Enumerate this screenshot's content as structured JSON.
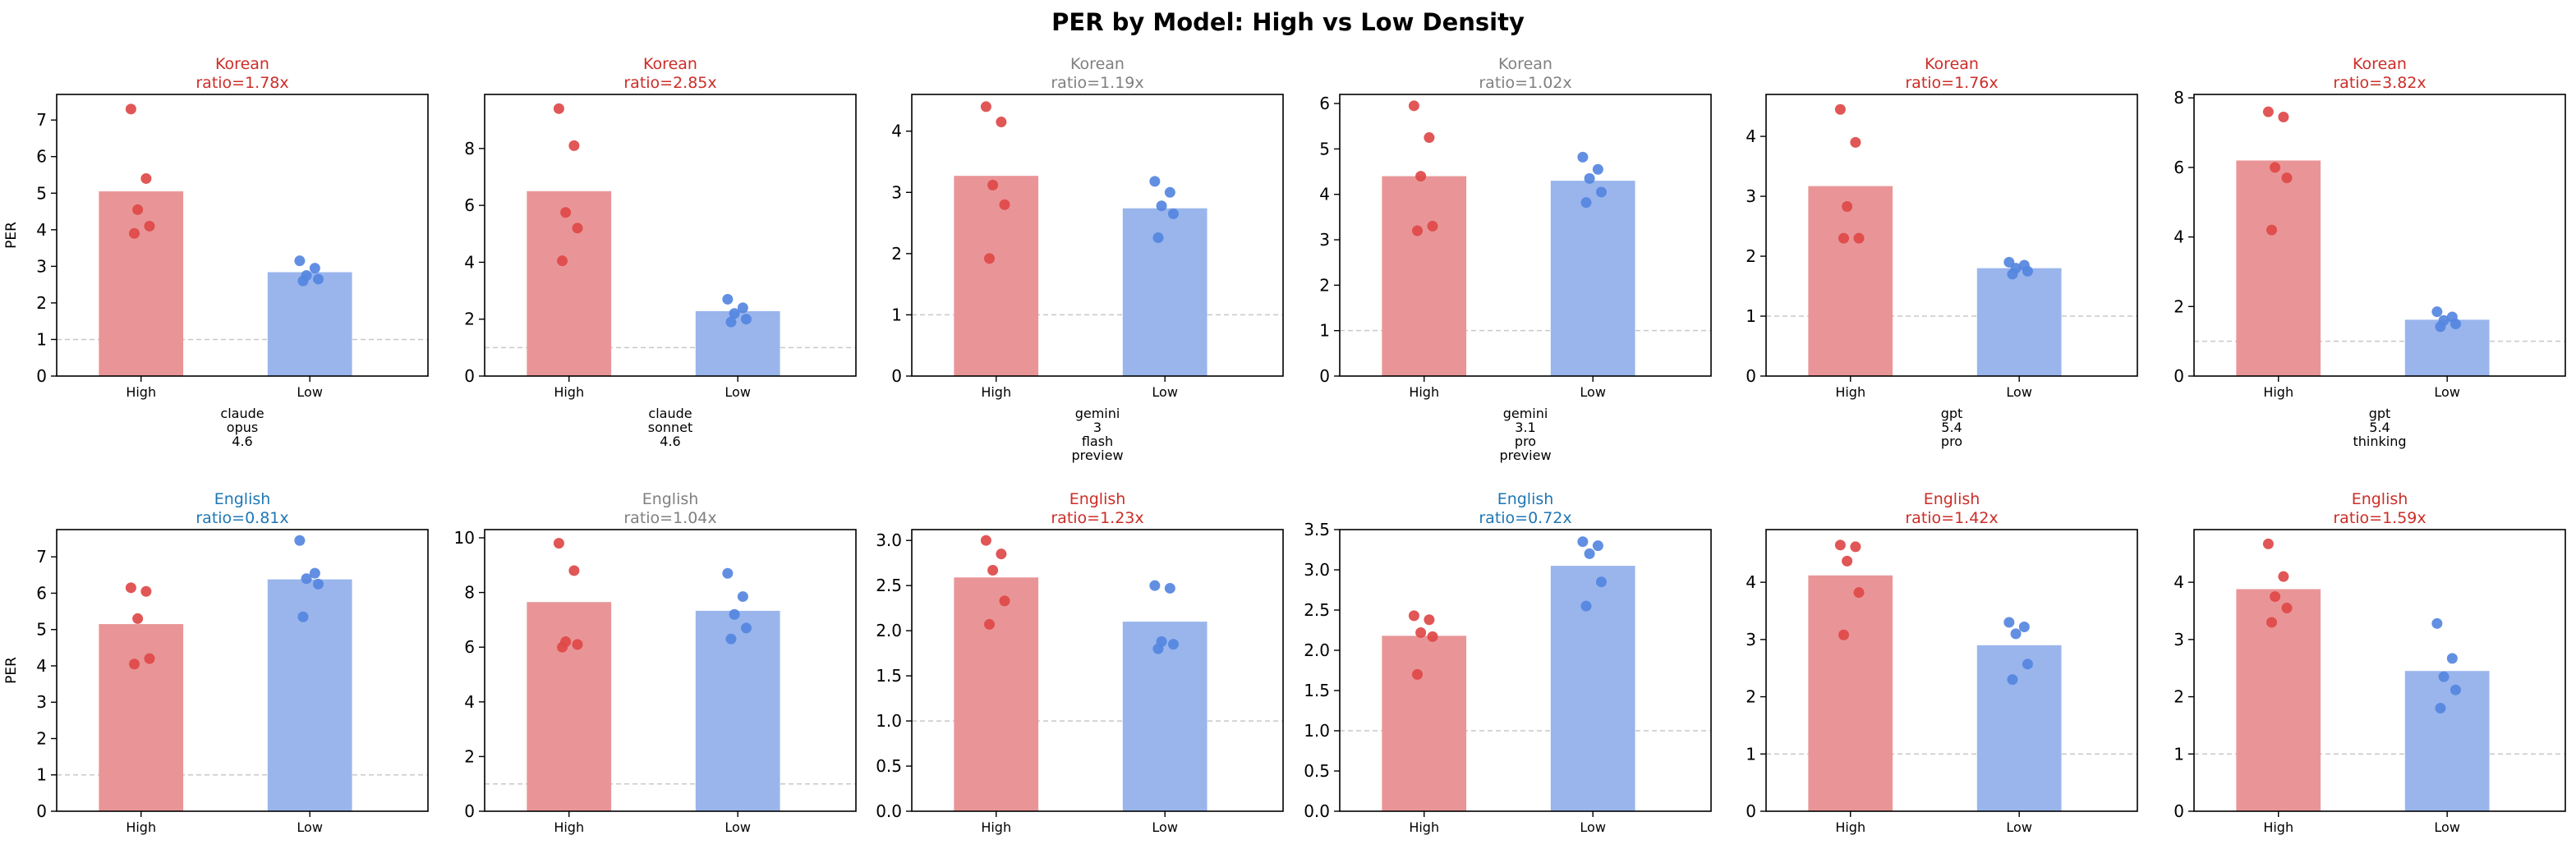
{
  "figure": {
    "title": "PER by Model: High vs Low Density"
  },
  "colors": {
    "high_bar": "#e99597",
    "high_point": "#de4848",
    "low_bar": "#99b5ec",
    "low_point": "#5586e0",
    "ratio_red": "#cd2d28",
    "ratio_gray": "#808080",
    "ratio_blue": "#1f77b4",
    "refline": "#c8c8c8"
  },
  "chart_data": [
    {
      "type": "bar",
      "row": 0,
      "col": 0,
      "title_lang": "Korean",
      "title_ratio": "ratio=1.78x",
      "title_color": "red",
      "ylabel": "PER",
      "categories": [
        "High",
        "Low"
      ],
      "values": [
        5.05,
        2.84
      ],
      "points": {
        "High": [
          7.3,
          5.4,
          4.55,
          4.1,
          3.9
        ],
        "Low": [
          3.15,
          2.95,
          2.75,
          2.65,
          2.6
        ]
      },
      "ylim": [
        0,
        7.7
      ],
      "yticks": [
        0,
        1,
        2,
        3,
        4,
        5,
        6,
        7
      ],
      "ref_line": 1,
      "model_label": [
        "claude",
        "opus",
        "4.6"
      ]
    },
    {
      "type": "bar",
      "row": 0,
      "col": 1,
      "title_lang": "Korean",
      "title_ratio": "ratio=2.85x",
      "title_color": "red",
      "ylabel": "",
      "categories": [
        "High",
        "Low"
      ],
      "values": [
        6.5,
        2.28
      ],
      "points": {
        "High": [
          9.4,
          8.1,
          5.75,
          5.2,
          4.05
        ],
        "Low": [
          2.7,
          2.4,
          2.2,
          2.0,
          1.9
        ]
      },
      "ylim": [
        0,
        9.9
      ],
      "yticks": [
        0,
        2,
        4,
        6,
        8
      ],
      "ref_line": 1,
      "model_label": [
        "claude",
        "sonnet",
        "4.6"
      ]
    },
    {
      "type": "bar",
      "row": 0,
      "col": 2,
      "title_lang": "Korean",
      "title_ratio": "ratio=1.19x",
      "title_color": "gray",
      "ylabel": "",
      "categories": [
        "High",
        "Low"
      ],
      "values": [
        3.27,
        2.74
      ],
      "points": {
        "High": [
          4.4,
          4.15,
          3.12,
          2.8,
          1.92
        ],
        "Low": [
          3.18,
          3.0,
          2.78,
          2.65,
          2.26
        ]
      },
      "ylim": [
        0,
        4.6
      ],
      "yticks": [
        0,
        1,
        2,
        3,
        4
      ],
      "ref_line": 1,
      "model_label": [
        "gemini",
        "3",
        "flash",
        "preview"
      ]
    },
    {
      "type": "bar",
      "row": 0,
      "col": 3,
      "title_lang": "Korean",
      "title_ratio": "ratio=1.02x",
      "title_color": "gray",
      "ylabel": "",
      "categories": [
        "High",
        "Low"
      ],
      "values": [
        4.4,
        4.3
      ],
      "points": {
        "High": [
          5.95,
          5.25,
          4.4,
          3.3,
          3.2
        ],
        "Low": [
          4.82,
          4.55,
          4.35,
          4.05,
          3.82
        ]
      },
      "ylim": [
        0,
        6.2
      ],
      "yticks": [
        0,
        1,
        2,
        3,
        4,
        5,
        6
      ],
      "ref_line": 1,
      "model_label": [
        "gemini",
        "3.1",
        "pro",
        "preview"
      ]
    },
    {
      "type": "bar",
      "row": 0,
      "col": 4,
      "title_lang": "Korean",
      "title_ratio": "ratio=1.76x",
      "title_color": "red",
      "ylabel": "",
      "categories": [
        "High",
        "Low"
      ],
      "values": [
        3.17,
        1.8
      ],
      "points": {
        "High": [
          4.45,
          3.9,
          2.83,
          2.3,
          2.3
        ],
        "Low": [
          1.9,
          1.85,
          1.8,
          1.75,
          1.7
        ]
      },
      "ylim": [
        0,
        4.7
      ],
      "yticks": [
        0,
        1,
        2,
        3,
        4
      ],
      "ref_line": 1,
      "model_label": [
        "gpt",
        "5.4",
        "pro"
      ]
    },
    {
      "type": "bar",
      "row": 0,
      "col": 5,
      "title_lang": "Korean",
      "title_ratio": "ratio=3.82x",
      "title_color": "red",
      "ylabel": "",
      "categories": [
        "High",
        "Low"
      ],
      "values": [
        6.2,
        1.62
      ],
      "points": {
        "High": [
          7.6,
          7.45,
          6.0,
          5.7,
          4.2
        ],
        "Low": [
          1.85,
          1.7,
          1.6,
          1.5,
          1.42
        ]
      },
      "ylim": [
        0,
        8.1
      ],
      "yticks": [
        0,
        2,
        4,
        6,
        8
      ],
      "ref_line": 1,
      "model_label": [
        "gpt",
        "5.4",
        "thinking"
      ]
    },
    {
      "type": "bar",
      "row": 1,
      "col": 0,
      "title_lang": "English",
      "title_ratio": "ratio=0.81x",
      "title_color": "blue",
      "ylabel": "PER",
      "categories": [
        "High",
        "Low"
      ],
      "values": [
        5.15,
        6.38
      ],
      "points": {
        "High": [
          6.15,
          6.05,
          5.3,
          4.2,
          4.05
        ],
        "Low": [
          7.45,
          6.55,
          6.4,
          6.25,
          5.35
        ]
      },
      "ylim": [
        0,
        7.75
      ],
      "yticks": [
        0,
        1,
        2,
        3,
        4,
        5,
        6,
        7
      ],
      "ref_line": 1,
      "model_label": []
    },
    {
      "type": "bar",
      "row": 1,
      "col": 1,
      "title_lang": "English",
      "title_ratio": "ratio=1.04x",
      "title_color": "gray",
      "ylabel": "",
      "categories": [
        "High",
        "Low"
      ],
      "values": [
        7.65,
        7.33
      ],
      "points": {
        "High": [
          9.8,
          8.8,
          6.2,
          6.1,
          6.0
        ],
        "Low": [
          8.7,
          7.85,
          7.2,
          6.7,
          6.3
        ]
      },
      "ylim": [
        0,
        10.3
      ],
      "yticks": [
        0,
        2,
        4,
        6,
        8,
        10
      ],
      "ref_line": 1,
      "model_label": []
    },
    {
      "type": "bar",
      "row": 1,
      "col": 2,
      "title_lang": "English",
      "title_ratio": "ratio=1.23x",
      "title_color": "red",
      "ylabel": "",
      "categories": [
        "High",
        "Low"
      ],
      "values": [
        2.59,
        2.1
      ],
      "points": {
        "High": [
          3.0,
          2.85,
          2.67,
          2.33,
          2.07
        ],
        "Low": [
          2.5,
          2.47,
          1.88,
          1.85,
          1.8
        ]
      },
      "ylim": [
        0,
        3.12
      ],
      "yticks": [
        0.0,
        0.5,
        1.0,
        1.5,
        2.0,
        2.5,
        3.0
      ],
      "ytick_decimals": 1,
      "ref_line": 1,
      "model_label": []
    },
    {
      "type": "bar",
      "row": 1,
      "col": 3,
      "title_lang": "English",
      "title_ratio": "ratio=0.72x",
      "title_color": "blue",
      "ylabel": "",
      "categories": [
        "High",
        "Low"
      ],
      "values": [
        2.18,
        3.05
      ],
      "points": {
        "High": [
          2.43,
          2.38,
          2.22,
          2.17,
          1.7
        ],
        "Low": [
          3.35,
          3.3,
          3.2,
          2.85,
          2.55
        ]
      },
      "ylim": [
        0,
        3.5
      ],
      "yticks": [
        0.0,
        0.5,
        1.0,
        1.5,
        2.0,
        2.5,
        3.0,
        3.5
      ],
      "ytick_decimals": 1,
      "ref_line": 1,
      "model_label": []
    },
    {
      "type": "bar",
      "row": 1,
      "col": 4,
      "title_lang": "English",
      "title_ratio": "ratio=1.42x",
      "title_color": "red",
      "ylabel": "",
      "categories": [
        "High",
        "Low"
      ],
      "values": [
        4.12,
        2.9
      ],
      "points": {
        "High": [
          4.65,
          4.62,
          4.37,
          3.82,
          3.08
        ],
        "Low": [
          3.3,
          3.22,
          3.1,
          2.57,
          2.3
        ]
      },
      "ylim": [
        0,
        4.92
      ],
      "yticks": [
        0,
        1,
        2,
        3,
        4
      ],
      "ref_line": 1,
      "model_label": []
    },
    {
      "type": "bar",
      "row": 1,
      "col": 5,
      "title_lang": "English",
      "title_ratio": "ratio=1.59x",
      "title_color": "red",
      "ylabel": "",
      "categories": [
        "High",
        "Low"
      ],
      "values": [
        3.88,
        2.45
      ],
      "points": {
        "High": [
          4.67,
          4.1,
          3.75,
          3.55,
          3.3
        ],
        "Low": [
          3.28,
          2.67,
          2.35,
          2.12,
          1.8
        ]
      },
      "ylim": [
        0,
        4.92
      ],
      "yticks": [
        0,
        1,
        2,
        3,
        4
      ],
      "ref_line": 1,
      "model_label": []
    }
  ]
}
